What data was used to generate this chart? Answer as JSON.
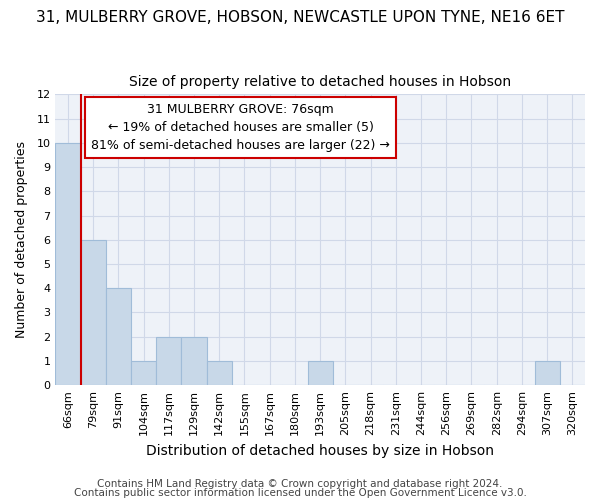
{
  "title": "31, MULBERRY GROVE, HOBSON, NEWCASTLE UPON TYNE, NE16 6ET",
  "subtitle": "Size of property relative to detached houses in Hobson",
  "xlabel": "Distribution of detached houses by size in Hobson",
  "ylabel": "Number of detached properties",
  "bar_color": "#c8d8e8",
  "bar_edgecolor": "#a0bcd8",
  "annotation_line_color": "#cc0000",
  "categories": [
    "66sqm",
    "79sqm",
    "91sqm",
    "104sqm",
    "117sqm",
    "129sqm",
    "142sqm",
    "155sqm",
    "167sqm",
    "180sqm",
    "193sqm",
    "205sqm",
    "218sqm",
    "231sqm",
    "244sqm",
    "256sqm",
    "269sqm",
    "282sqm",
    "294sqm",
    "307sqm",
    "320sqm"
  ],
  "values": [
    10,
    6,
    4,
    1,
    2,
    2,
    1,
    0,
    0,
    0,
    1,
    0,
    0,
    0,
    0,
    0,
    0,
    0,
    0,
    1,
    0
  ],
  "ylim": [
    0,
    12
  ],
  "yticks": [
    0,
    1,
    2,
    3,
    4,
    5,
    6,
    7,
    8,
    9,
    10,
    11,
    12
  ],
  "annotation_box_text": "31 MULBERRY GROVE: 76sqm\n← 19% of detached houses are smaller (5)\n81% of semi-detached houses are larger (22) →",
  "red_line_x": 0.5,
  "footer_line1": "Contains HM Land Registry data © Crown copyright and database right 2024.",
  "footer_line2": "Contains public sector information licensed under the Open Government Licence v3.0.",
  "title_fontsize": 11,
  "subtitle_fontsize": 10,
  "xlabel_fontsize": 10,
  "ylabel_fontsize": 9,
  "tick_fontsize": 8,
  "annotation_fontsize": 9,
  "footer_fontsize": 7.5,
  "grid_color": "#d0d8e8",
  "bg_color": "#eef2f8"
}
